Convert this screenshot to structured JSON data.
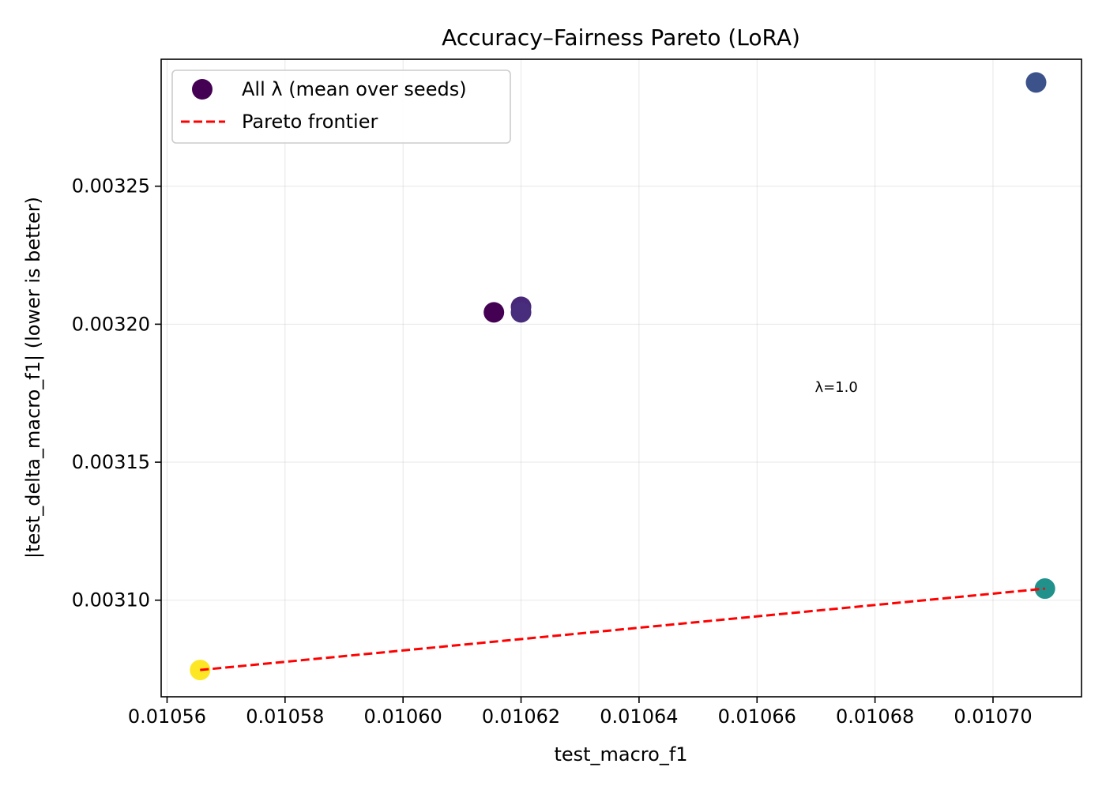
{
  "chart_data": {
    "type": "scatter",
    "title": "Accuracy–Fairness Pareto (LoRA)",
    "xlabel": "test_macro_f1",
    "ylabel": "|test_delta_macro_f1| (lower is better)",
    "xlim": [
      0.010559,
      0.010715
    ],
    "ylim": [
      0.003065,
      0.003296
    ],
    "xticks": [
      0.01056,
      0.01058,
      0.0106,
      0.01062,
      0.01064,
      0.01066,
      0.01068,
      0.0107
    ],
    "xtick_labels": [
      "0.01056",
      "0.01058",
      "0.01060",
      "0.01062",
      "0.01064",
      "0.01066",
      "0.01068",
      "0.01070"
    ],
    "yticks": [
      0.0031,
      0.00315,
      0.0032,
      0.00325
    ],
    "ytick_labels": [
      "0.00310",
      "0.00315",
      "0.00320",
      "0.00325"
    ],
    "grid": true,
    "legend_position": "top-left",
    "series": [
      {
        "name": "All λ (mean over seeds)",
        "kind": "scatter",
        "legend_color": "#440154",
        "points": [
          {
            "x": 0.0106154,
            "y": 0.0032043,
            "color": "#440154"
          },
          {
            "x": 0.01062,
            "y": 0.0032063,
            "color": "#482878"
          },
          {
            "x": 0.01062,
            "y": 0.0032043,
            "color": "#472d7b"
          },
          {
            "x": 0.0107073,
            "y": 0.0032876,
            "color": "#3b528b"
          },
          {
            "x": 0.0107088,
            "y": 0.0031042,
            "color": "#21918c"
          },
          {
            "x": 0.0105656,
            "y": 0.0030747,
            "color": "#fde725"
          }
        ]
      },
      {
        "name": "Pareto frontier",
        "kind": "line",
        "color": "#ff0000",
        "style": "dashed",
        "points": [
          {
            "x": 0.0105656,
            "y": 0.0030747
          },
          {
            "x": 0.0107088,
            "y": 0.0031042
          }
        ]
      }
    ],
    "annotations": [
      {
        "text": "λ=1.0",
        "x": 0.0106698,
        "y": 0.0031755
      }
    ]
  }
}
